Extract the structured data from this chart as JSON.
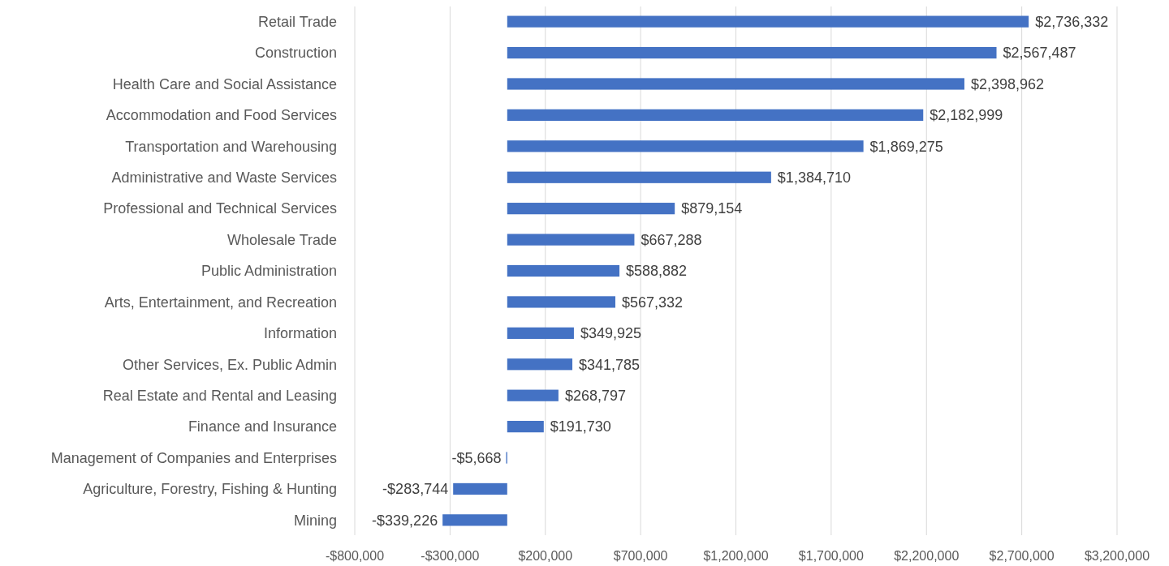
{
  "chart_data": {
    "type": "bar",
    "orientation": "horizontal",
    "categories": [
      "Retail Trade",
      "Construction",
      "Health Care and Social Assistance",
      "Accommodation and Food Services",
      "Transportation and Warehousing",
      "Administrative and Waste Services",
      "Professional and Technical Services",
      "Wholesale Trade",
      "Public Administration",
      "Arts, Entertainment, and Recreation",
      "Information",
      "Other Services, Ex. Public Admin",
      "Real Estate and Rental and Leasing",
      "Finance and Insurance",
      "Management of Companies and Enterprises",
      "Agriculture, Forestry, Fishing & Hunting",
      "Mining"
    ],
    "values": [
      2736332,
      2567487,
      2398962,
      2182999,
      1869275,
      1384710,
      879154,
      667288,
      588882,
      567332,
      349925,
      341785,
      268797,
      191730,
      -5668,
      -283744,
      -339226
    ],
    "value_labels": [
      "$2,736,332",
      "$2,567,487",
      "$2,398,962",
      "$2,182,999",
      "$1,869,275",
      "$1,384,710",
      "$879,154",
      "$667,288",
      "$588,882",
      "$567,332",
      "$349,925",
      "$341,785",
      "$268,797",
      "$191,730",
      "-$5,668",
      "-$283,744",
      "-$339,226"
    ],
    "color": "#4472c4",
    "xlim": [
      -800000,
      3200000
    ],
    "xticks": [
      {
        "value": -800000,
        "label": "-$800,000"
      },
      {
        "value": -300000,
        "label": "-$300,000"
      },
      {
        "value": 200000,
        "label": "$200,000"
      },
      {
        "value": 700000,
        "label": "$700,000"
      },
      {
        "value": 1200000,
        "label": "$1,200,000"
      },
      {
        "value": 1700000,
        "label": "$1,700,000"
      },
      {
        "value": 2200000,
        "label": "$2,200,000"
      },
      {
        "value": 2700000,
        "label": "$2,700,000"
      },
      {
        "value": 3200000,
        "label": "$3,200,000"
      }
    ],
    "grid": "x"
  }
}
